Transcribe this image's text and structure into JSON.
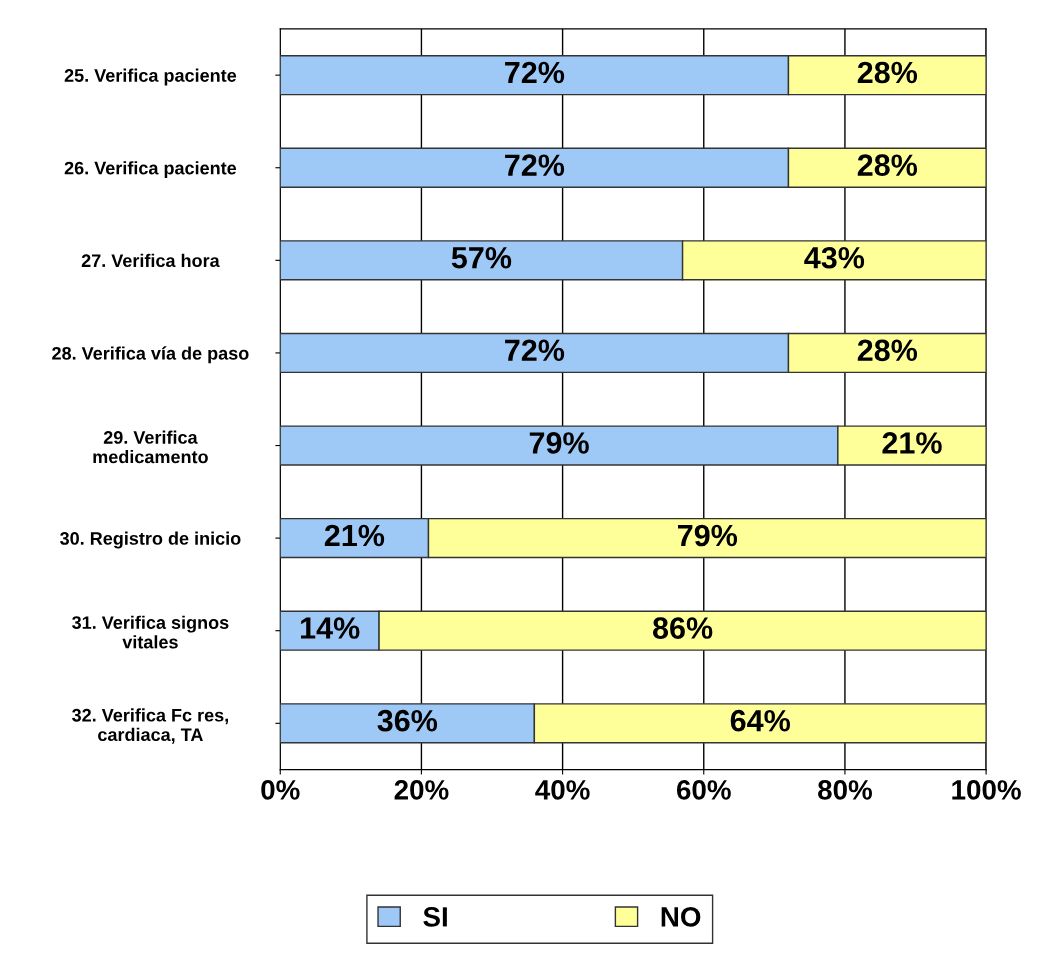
{
  "chart_data": {
    "type": "bar",
    "orientation": "horizontal",
    "stacked": true,
    "categories": [
      "25. Verifica paciente",
      "26. Verifica paciente",
      "27. Verifica hora",
      "28. Verifica vía de paso",
      "29. Verifica\nmedicamento",
      "30. Registro de inicio",
      "31. Verifica signos\nvitales",
      "32. Verifica Fc res,\ncardiaca, TA"
    ],
    "series": [
      {
        "name": "SI",
        "color": "#9ec8f5",
        "values": [
          72,
          72,
          57,
          72,
          79,
          21,
          14,
          36
        ],
        "value_labels": [
          "72%",
          "72%",
          "57%",
          "72%",
          "79%",
          "21%",
          "14%",
          "36%"
        ]
      },
      {
        "name": "NO",
        "color": "#ffff99",
        "values": [
          28,
          28,
          43,
          28,
          21,
          79,
          86,
          64
        ],
        "value_labels": [
          "28%",
          "28%",
          "43%",
          "28%",
          "21%",
          "79%",
          "86%",
          "64%"
        ]
      }
    ],
    "xlim": [
      0,
      100
    ],
    "xticks": [
      {
        "value": 0,
        "label": "0%"
      },
      {
        "value": 20,
        "label": "20%"
      },
      {
        "value": 40,
        "label": "40%"
      },
      {
        "value": 60,
        "label": "60%"
      },
      {
        "value": 80,
        "label": "80%"
      },
      {
        "value": 100,
        "label": "100%"
      }
    ],
    "grid": "x",
    "legend": "bottom"
  }
}
